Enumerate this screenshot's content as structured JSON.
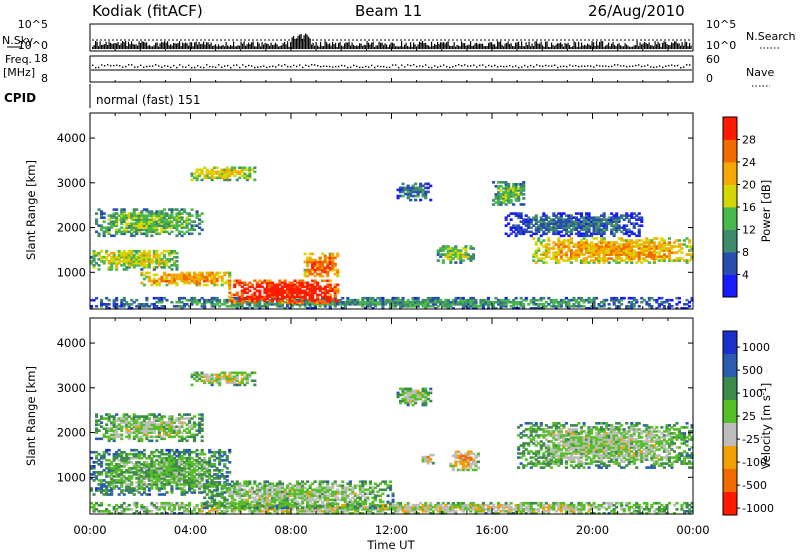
{
  "header": {
    "station": "Kodiak (fitACF)",
    "beam": "Beam 11",
    "date": "26/Aug/2010"
  },
  "top_panels": {
    "nsky_label": "N.Sky",
    "nsky_ticks": [
      "10^5",
      "10^0"
    ],
    "nsearch_label": "N.Search",
    "nsearch_ticks": [
      "10^5",
      "10^0"
    ],
    "freq_label_1": "Freq.",
    "freq_label_2": "[MHz]",
    "freq_ticks": [
      "18",
      "8"
    ],
    "nave_label": "Nave",
    "nave_ticks": [
      "60",
      "0"
    ],
    "cpid_label": "CPID",
    "cpid_value": "normal (fast) 151"
  },
  "chart_data": [
    {
      "type": "heatmap",
      "name": "power-panel",
      "ylabel": "Slant Range [km]",
      "ylim": [
        180,
        4560
      ],
      "yticks": [
        "1000",
        "2000",
        "3000",
        "4000"
      ],
      "ytick_values": [
        1000,
        2000,
        3000,
        4000
      ],
      "xlabel": "Time UT",
      "xticks": [
        "00:00",
        "04:00",
        "08:00",
        "12:00",
        "16:00",
        "20:00",
        "00:00"
      ],
      "xlim_hours": [
        0,
        24
      ],
      "colorbar": {
        "label": "Power [dB]",
        "ticks": [
          "4",
          "8",
          "12",
          "16",
          "20",
          "24",
          "28"
        ],
        "colors": [
          "#1a1aff",
          "#2a4db0",
          "#3f8a6a",
          "#48b84a",
          "#d6d600",
          "#f7a800",
          "#f26b00",
          "#ff1a00"
        ]
      },
      "features": [
        {
          "t": [
            0.0,
            24.0
          ],
          "r": [
            180,
            420
          ],
          "level": 0.35
        },
        {
          "t": [
            0.0,
            3.5
          ],
          "r": [
            1050,
            1500
          ],
          "level": 0.55
        },
        {
          "t": [
            2.0,
            5.5
          ],
          "r": [
            700,
            1000
          ],
          "level": 0.75
        },
        {
          "t": [
            5.5,
            9.8
          ],
          "r": [
            300,
            800
          ],
          "level": 0.97
        },
        {
          "t": [
            8.5,
            9.8
          ],
          "r": [
            900,
            1400
          ],
          "level": 0.82
        },
        {
          "t": [
            0.2,
            4.5
          ],
          "r": [
            1800,
            2400
          ],
          "level": 0.45
        },
        {
          "t": [
            4.0,
            6.5
          ],
          "r": [
            3050,
            3350
          ],
          "level": 0.6
        },
        {
          "t": [
            12.2,
            13.5
          ],
          "r": [
            2600,
            3000
          ],
          "level": 0.3
        },
        {
          "t": [
            13.8,
            15.2
          ],
          "r": [
            1200,
            1600
          ],
          "level": 0.5
        },
        {
          "t": [
            16.0,
            17.3
          ],
          "r": [
            2500,
            3000
          ],
          "level": 0.45
        },
        {
          "t": [
            17.5,
            24.0
          ],
          "r": [
            1200,
            1750
          ],
          "level": 0.7
        },
        {
          "t": [
            16.5,
            22.0
          ],
          "r": [
            1800,
            2300
          ],
          "level": 0.25
        }
      ]
    },
    {
      "type": "heatmap",
      "name": "velocity-panel",
      "ylabel": "Slant Range [km]",
      "ylim": [
        180,
        4560
      ],
      "yticks": [
        "1000",
        "2000",
        "3000",
        "4000"
      ],
      "ytick_values": [
        1000,
        2000,
        3000,
        4000
      ],
      "xlabel": "Time UT",
      "xticks": [
        "00:00",
        "04:00",
        "08:00",
        "12:00",
        "16:00",
        "20:00",
        "00:00"
      ],
      "xlim_hours": [
        0,
        24
      ],
      "colorbar": {
        "label": "Velocity [m s",
        "label_sup": "-1",
        "label_end": "]",
        "ticks": [
          "1000",
          "500",
          "100",
          "25",
          "-25",
          "-100",
          "-500",
          "-1000"
        ],
        "colors": [
          "#1a2fcc",
          "#2a5db0",
          "#3d8a4a",
          "#55c026",
          "#bdbdbd",
          "#f2a100",
          "#f26b00",
          "#ff1a00"
        ]
      },
      "features": [
        {
          "t": [
            0.0,
            24.0
          ],
          "r": [
            180,
            420
          ],
          "level": 0.55
        },
        {
          "t": [
            0.0,
            5.5
          ],
          "r": [
            600,
            1600
          ],
          "level": 0.42
        },
        {
          "t": [
            4.5,
            12.0
          ],
          "r": [
            300,
            900
          ],
          "level": 0.5
        },
        {
          "t": [
            0.2,
            4.5
          ],
          "r": [
            1800,
            2400
          ],
          "level": 0.5
        },
        {
          "t": [
            4.0,
            6.5
          ],
          "r": [
            3050,
            3350
          ],
          "level": 0.55
        },
        {
          "t": [
            13.2,
            13.6
          ],
          "r": [
            1300,
            1500
          ],
          "level": 0.68
        },
        {
          "t": [
            14.3,
            15.4
          ],
          "r": [
            1150,
            1600
          ],
          "level": 0.68
        },
        {
          "t": [
            17.0,
            24.0
          ],
          "r": [
            1200,
            2200
          ],
          "level": 0.5
        },
        {
          "t": [
            12.2,
            13.5
          ],
          "r": [
            2600,
            3000
          ],
          "level": 0.5
        }
      ]
    }
  ]
}
